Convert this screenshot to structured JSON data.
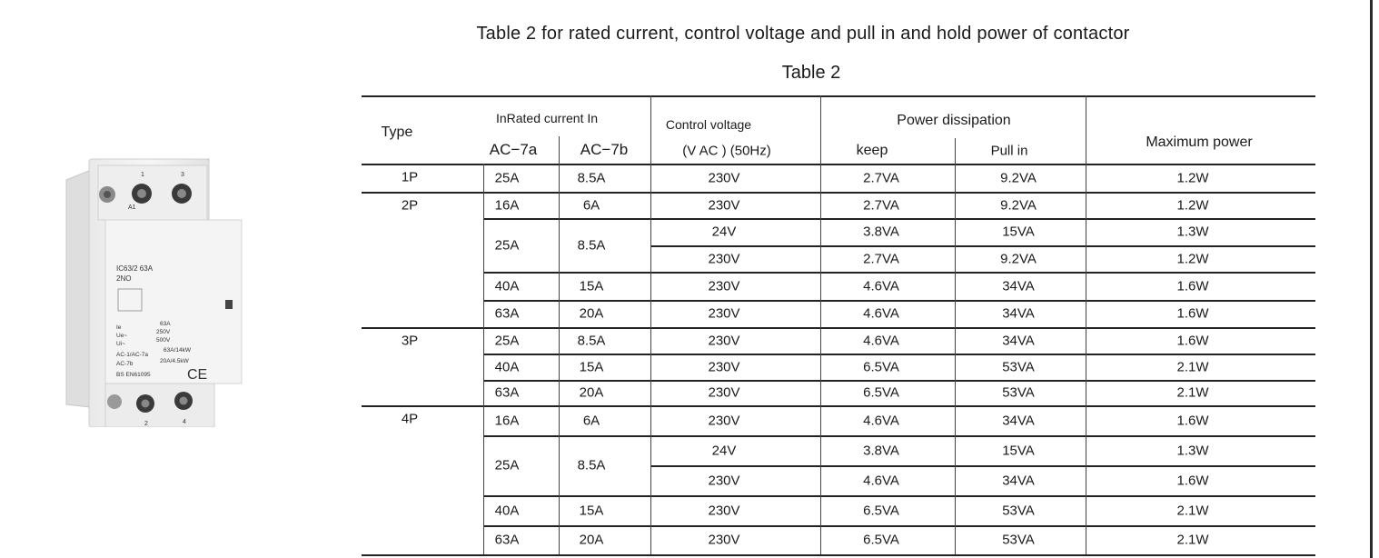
{
  "title": "Table 2 for rated current, control voltage and pull in and hold power of  contactor",
  "subtitle": "Table 2",
  "headers": {
    "type": "Type",
    "rated_current": "InRated current In",
    "ac7a": "AC−7a",
    "ac7b": "AC−7b",
    "control_voltage": "Control voltage",
    "control_voltage_unit": "(V AC )  (50Hz)",
    "power_dissipation": "Power dissipation",
    "keep": "keep",
    "pull_in": "Pull in",
    "max_power": "Maximum power"
  },
  "types": [
    "1P",
    "2P",
    "3P",
    "4P"
  ],
  "rows": [
    {
      "ac7a": "25A",
      "ac7b": "8.5A",
      "voltage": "230V",
      "keep": "2.7VA",
      "pull": "9.2VA",
      "max": "1.2W"
    },
    {
      "ac7a": "16A",
      "ac7b": "6A",
      "voltage": "230V",
      "keep": "2.7VA",
      "pull": "9.2VA",
      "max": "1.2W"
    },
    {
      "ac7a": "25A",
      "ac7b": "8.5A",
      "voltage": "24V",
      "keep": "3.8VA",
      "pull": "15VA",
      "max": "1.3W"
    },
    {
      "voltage": "230V",
      "keep": "2.7VA",
      "pull": "9.2VA",
      "max": "1.2W"
    },
    {
      "ac7a": "40A",
      "ac7b": "15A",
      "voltage": "230V",
      "keep": "4.6VA",
      "pull": "34VA",
      "max": "1.6W"
    },
    {
      "ac7a": "63A",
      "ac7b": "20A",
      "voltage": "230V",
      "keep": "4.6VA",
      "pull": "34VA",
      "max": "1.6W"
    },
    {
      "ac7a": "25A",
      "ac7b": "8.5A",
      "voltage": "230V",
      "keep": "4.6VA",
      "pull": "34VA",
      "max": "1.6W"
    },
    {
      "ac7a": "40A",
      "ac7b": "15A",
      "voltage": "230V",
      "keep": "6.5VA",
      "pull": "53VA",
      "max": "2.1W"
    },
    {
      "ac7a": "63A",
      "ac7b": "20A",
      "voltage": "230V",
      "keep": "6.5VA",
      "pull": "53VA",
      "max": "2.1W"
    },
    {
      "ac7a": "16A",
      "ac7b": "6A",
      "voltage": "230V",
      "keep": "4.6VA",
      "pull": "34VA",
      "max": "1.6W"
    },
    {
      "ac7a": "25A",
      "ac7b": "8.5A",
      "voltage": "24V",
      "keep": "3.8VA",
      "pull": "15VA",
      "max": "1.3W"
    },
    {
      "voltage": "230V",
      "keep": "4.6VA",
      "pull": "34VA",
      "max": "1.6W"
    },
    {
      "ac7a": "40A",
      "ac7b": "15A",
      "voltage": "230V",
      "keep": "6.5VA",
      "pull": "53VA",
      "max": "2.1W"
    },
    {
      "ac7a": "63A",
      "ac7b": "20A",
      "voltage": "230V",
      "keep": "6.5VA",
      "pull": "53VA",
      "max": "2.1W"
    }
  ],
  "product_label": {
    "terminal_top_1": "1",
    "terminal_top_3": "3",
    "a1": "A1",
    "model": "IC63/2 63A",
    "contacts": "2NO",
    "ie": "Ie",
    "ie_val": "63A",
    "ue": "Ue~",
    "ue_val": "250V",
    "ui": "Ui~",
    "ui_val": "500V",
    "ac1": "AC-1/AC-7a",
    "ac1_val": "63A/14kW",
    "ac7b": "AC-7b",
    "ac7b_val": "20A/4.5kW",
    "standard": "BS EN61095",
    "ce": "CE",
    "terminal_bot_2": "2",
    "terminal_bot_4": "4"
  }
}
